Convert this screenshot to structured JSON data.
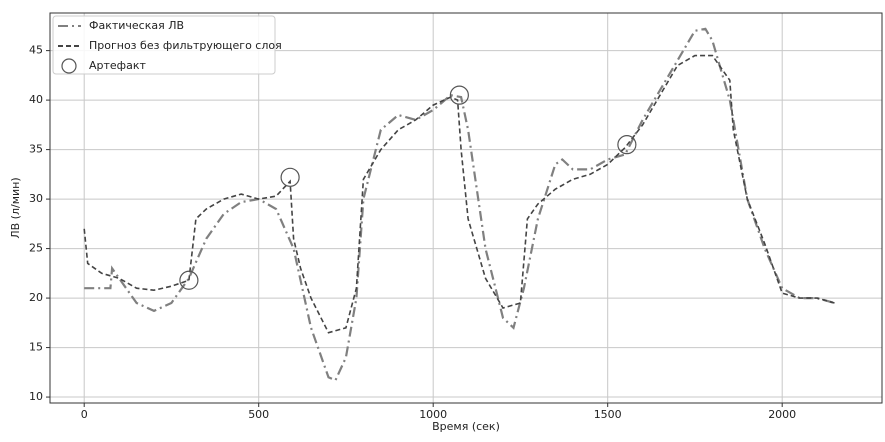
{
  "chart_data": {
    "type": "line",
    "xlabel": "Время (сек)",
    "ylabel": "ЛВ (л/мин)",
    "xlim": [
      -98,
      2286
    ],
    "ylim": [
      9.4,
      48.8
    ],
    "xticks": [
      0,
      500,
      1000,
      1500,
      2000
    ],
    "yticks": [
      10,
      15,
      20,
      25,
      30,
      35,
      40,
      45
    ],
    "grid": true,
    "legend": "upper left",
    "series": [
      {
        "name": "Фактическая ЛВ",
        "color": "#808080",
        "style": "dashdot",
        "x": [
          0,
          50,
          75,
          80,
          100,
          150,
          200,
          250,
          300,
          350,
          400,
          450,
          500,
          550,
          600,
          650,
          700,
          720,
          750,
          780,
          800,
          850,
          900,
          950,
          1000,
          1050,
          1080,
          1100,
          1150,
          1200,
          1230,
          1260,
          1300,
          1350,
          1370,
          1400,
          1450,
          1500,
          1550,
          1600,
          1650,
          1700,
          1750,
          1780,
          1800,
          1850,
          1900,
          1950,
          2000,
          2050,
          2100,
          2150
        ],
        "values": [
          21,
          21,
          21,
          23,
          22,
          19.5,
          18.7,
          19.5,
          22,
          26,
          28.5,
          29.7,
          30,
          29,
          25,
          17,
          12,
          11.7,
          14,
          20,
          30,
          37,
          38.5,
          38,
          39,
          40.5,
          40.3,
          37,
          25,
          18,
          17,
          21,
          28,
          33.5,
          34,
          33,
          33,
          34,
          34.5,
          38,
          41,
          44,
          47,
          47.2,
          46,
          40,
          30,
          25,
          21,
          20,
          20,
          19.5
        ]
      },
      {
        "name": "Прогноз без фильтрующего слоя",
        "color": "#444444",
        "style": "dashed",
        "x": [
          0,
          10,
          50,
          100,
          150,
          200,
          250,
          300,
          320,
          350,
          400,
          450,
          500,
          550,
          590,
          600,
          620,
          650,
          700,
          750,
          780,
          800,
          850,
          900,
          950,
          1000,
          1050,
          1070,
          1080,
          1100,
          1150,
          1200,
          1250,
          1270,
          1300,
          1350,
          1400,
          1450,
          1500,
          1550,
          1600,
          1650,
          1700,
          1750,
          1800,
          1850,
          1860,
          1900,
          1950,
          2000,
          2050,
          2100,
          2150
        ],
        "values": [
          27,
          23.5,
          22.5,
          22,
          21,
          20.8,
          21.2,
          21.8,
          28,
          29,
          30,
          30.5,
          30,
          30.3,
          31.8,
          26,
          23,
          20,
          16.5,
          17,
          21,
          32,
          35,
          37,
          38,
          39.5,
          40.3,
          40,
          35,
          28,
          22,
          19,
          19.5,
          28,
          29.5,
          31,
          32,
          32.5,
          33.5,
          35.2,
          37.5,
          40.5,
          43.5,
          44.5,
          44.5,
          42,
          37,
          30,
          25.5,
          20.5,
          20,
          20,
          19.5
        ]
      },
      {
        "name": "Артефакт",
        "color": "#555555",
        "style": "circle",
        "x": [
          300,
          590,
          1075,
          1555
        ],
        "values": [
          21.8,
          32.2,
          40.5,
          35.5
        ]
      }
    ]
  }
}
